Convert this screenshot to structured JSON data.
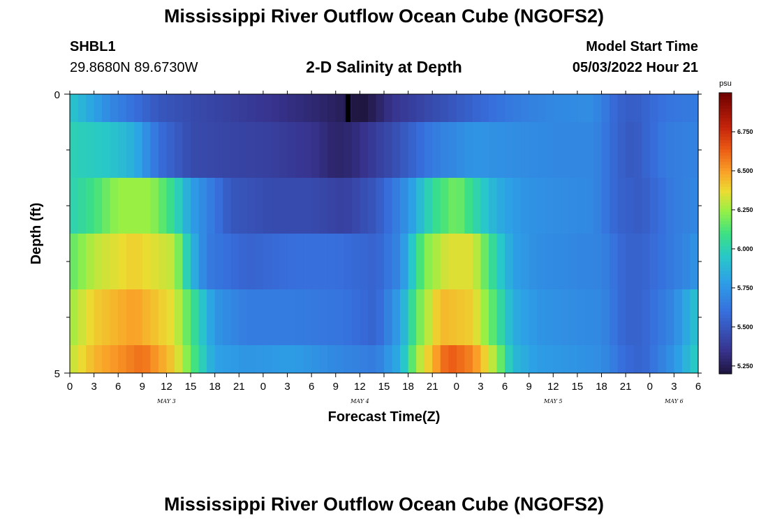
{
  "header": {
    "title": "Mississippi River Outflow Ocean Cube (NGOFS2)",
    "station_id": "SHBL1",
    "station_coords": "29.8680N  89.6730W",
    "subtitle": "2-D Salinity at Depth",
    "model_start_label": "Model Start Time",
    "model_start_value": "05/03/2022 Hour 21"
  },
  "footer": {
    "title": "Mississippi River Outflow Ocean Cube (NGOFS2)"
  },
  "chart_data": {
    "type": "heatmap",
    "title": "2-D Salinity at Depth",
    "xlabel": "Forecast Time(Z)",
    "ylabel": "Depth (ft)",
    "x_hours_range": [
      0,
      78
    ],
    "ylim": [
      0,
      5
    ],
    "y_ticks": [
      "0",
      "5"
    ],
    "x_tick_labels": [
      "0",
      "3",
      "6",
      "9",
      "12",
      "15",
      "18",
      "21",
      "0",
      "3",
      "6",
      "9",
      "12",
      "15",
      "18",
      "21",
      "0",
      "3",
      "6",
      "9",
      "12",
      "15",
      "18",
      "21",
      "0",
      "3",
      "6"
    ],
    "date_labels": [
      {
        "label": "MAY 3",
        "hour": 12
      },
      {
        "label": "MAY 4",
        "hour": 36
      },
      {
        "label": "MAY 5",
        "hour": 60
      },
      {
        "label": "MAY 6",
        "hour": 75
      }
    ],
    "colorbar": {
      "unit": "psu",
      "range": [
        5.2,
        7.0
      ],
      "ticks": [
        "5.250",
        "5.500",
        "5.750",
        "6.000",
        "6.250",
        "6.500",
        "6.750"
      ],
      "tick_values": [
        5.25,
        5.5,
        5.75,
        6.0,
        6.25,
        6.5,
        6.75
      ]
    },
    "layers": [
      {
        "depth_range": [
          0.0,
          0.5
        ],
        "keys": [
          [
            0,
            5.95
          ],
          [
            2,
            5.85
          ],
          [
            5,
            5.7
          ],
          [
            8,
            5.6
          ],
          [
            11,
            5.5
          ],
          [
            15,
            5.45
          ],
          [
            20,
            5.4
          ],
          [
            25,
            5.35
          ],
          [
            30,
            5.3
          ],
          [
            34,
            5.25
          ],
          [
            36,
            5.2
          ],
          [
            37,
            5.22
          ],
          [
            40,
            5.35
          ],
          [
            45,
            5.45
          ],
          [
            50,
            5.55
          ],
          [
            55,
            5.65
          ],
          [
            60,
            5.7
          ],
          [
            65,
            5.72
          ],
          [
            68,
            5.55
          ],
          [
            70,
            5.52
          ],
          [
            74,
            5.62
          ],
          [
            78,
            5.65
          ]
        ]
      },
      {
        "depth_range": [
          0.5,
          1.5
        ],
        "keys": [
          [
            0,
            6.0
          ],
          [
            5,
            5.95
          ],
          [
            8,
            5.85
          ],
          [
            11,
            5.6
          ],
          [
            15,
            5.45
          ],
          [
            20,
            5.42
          ],
          [
            25,
            5.4
          ],
          [
            30,
            5.35
          ],
          [
            33,
            5.28
          ],
          [
            35,
            5.3
          ],
          [
            40,
            5.45
          ],
          [
            45,
            5.65
          ],
          [
            50,
            5.75
          ],
          [
            55,
            5.72
          ],
          [
            60,
            5.7
          ],
          [
            65,
            5.7
          ],
          [
            68,
            5.55
          ],
          [
            70,
            5.5
          ],
          [
            74,
            5.65
          ],
          [
            78,
            5.68
          ]
        ]
      },
      {
        "depth_range": [
          1.5,
          2.5
        ],
        "keys": [
          [
            0,
            6.0
          ],
          [
            3,
            6.1
          ],
          [
            6,
            6.25
          ],
          [
            10,
            6.25
          ],
          [
            13,
            6.05
          ],
          [
            15,
            5.8
          ],
          [
            20,
            5.5
          ],
          [
            25,
            5.45
          ],
          [
            30,
            5.45
          ],
          [
            34,
            5.4
          ],
          [
            38,
            5.5
          ],
          [
            42,
            5.75
          ],
          [
            45,
            6.05
          ],
          [
            48,
            6.2
          ],
          [
            50,
            6.05
          ],
          [
            53,
            5.85
          ],
          [
            56,
            5.75
          ],
          [
            60,
            5.72
          ],
          [
            65,
            5.7
          ],
          [
            68,
            5.55
          ],
          [
            71,
            5.52
          ],
          [
            75,
            5.65
          ],
          [
            78,
            5.7
          ]
        ]
      },
      {
        "depth_range": [
          2.5,
          3.5
        ],
        "keys": [
          [
            0,
            6.15
          ],
          [
            3,
            6.3
          ],
          [
            8,
            6.4
          ],
          [
            13,
            6.3
          ],
          [
            15,
            5.9
          ],
          [
            17,
            5.65
          ],
          [
            22,
            5.55
          ],
          [
            28,
            5.6
          ],
          [
            33,
            5.6
          ],
          [
            38,
            5.55
          ],
          [
            41,
            5.7
          ],
          [
            44,
            6.2
          ],
          [
            47,
            6.35
          ],
          [
            50,
            6.35
          ],
          [
            53,
            6.0
          ],
          [
            55,
            5.8
          ],
          [
            58,
            5.72
          ],
          [
            62,
            5.7
          ],
          [
            66,
            5.68
          ],
          [
            69,
            5.55
          ],
          [
            71,
            5.55
          ],
          [
            75,
            5.65
          ],
          [
            78,
            5.75
          ]
        ]
      },
      {
        "depth_range": [
          3.5,
          4.5
        ],
        "keys": [
          [
            0,
            6.25
          ],
          [
            3,
            6.4
          ],
          [
            8,
            6.5
          ],
          [
            13,
            6.35
          ],
          [
            16,
            6.0
          ],
          [
            18,
            5.75
          ],
          [
            22,
            5.65
          ],
          [
            28,
            5.65
          ],
          [
            34,
            5.62
          ],
          [
            38,
            5.55
          ],
          [
            41,
            5.8
          ],
          [
            43,
            6.15
          ],
          [
            46,
            6.45
          ],
          [
            50,
            6.4
          ],
          [
            53,
            6.1
          ],
          [
            55,
            5.85
          ],
          [
            58,
            5.75
          ],
          [
            62,
            5.72
          ],
          [
            66,
            5.7
          ],
          [
            69,
            5.55
          ],
          [
            71,
            5.55
          ],
          [
            75,
            5.7
          ],
          [
            78,
            5.95
          ]
        ]
      },
      {
        "depth_range": [
          4.5,
          5.0
        ],
        "keys": [
          [
            0,
            6.3
          ],
          [
            3,
            6.45
          ],
          [
            9,
            6.6
          ],
          [
            13,
            6.4
          ],
          [
            16,
            6.05
          ],
          [
            18,
            5.8
          ],
          [
            22,
            5.75
          ],
          [
            28,
            5.78
          ],
          [
            33,
            5.7
          ],
          [
            38,
            5.65
          ],
          [
            41,
            5.85
          ],
          [
            43,
            6.25
          ],
          [
            47,
            6.65
          ],
          [
            50,
            6.55
          ],
          [
            53,
            6.25
          ],
          [
            55,
            5.9
          ],
          [
            58,
            5.78
          ],
          [
            62,
            5.75
          ],
          [
            66,
            5.72
          ],
          [
            69,
            5.58
          ],
          [
            71,
            5.55
          ],
          [
            75,
            5.75
          ],
          [
            78,
            6.0
          ]
        ]
      }
    ],
    "anomaly": {
      "hour": 34.5,
      "depth_range": [
        0.0,
        0.5
      ],
      "color": "#000000"
    }
  }
}
